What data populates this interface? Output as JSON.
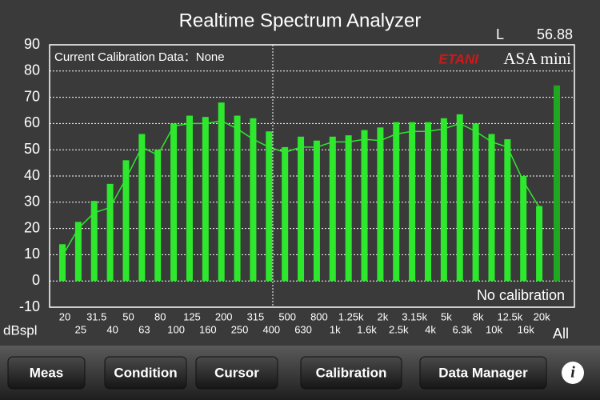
{
  "header": {
    "title": "Realtime Spectrum Analyzer",
    "channel": "L",
    "level": 56.88
  },
  "chart_data": {
    "type": "bar",
    "y_label": "dBspl",
    "categories": [
      "20",
      "25",
      "31.5",
      "40",
      "50",
      "63",
      "80",
      "100",
      "125",
      "160",
      "200",
      "250",
      "315",
      "400",
      "500",
      "630",
      "800",
      "1k",
      "1.25k",
      "1.6k",
      "2k",
      "2.5k",
      "3.15k",
      "4k",
      "5k",
      "6.3k",
      "8k",
      "10k",
      "12.5k",
      "16k",
      "20k",
      "All"
    ],
    "series": [
      {
        "type": "bar",
        "color": "#2ee82e",
        "total_color": "#1fa81f",
        "values": [
          14,
          22.5,
          30.5,
          37,
          46,
          56,
          50,
          60,
          63,
          62.5,
          68,
          63,
          62,
          57,
          51,
          55,
          53.5,
          55,
          55.5,
          57.5,
          58.5,
          60.5,
          60.5,
          60.5,
          62,
          63.5,
          60,
          56,
          54,
          40,
          28.5,
          74.5
        ]
      },
      {
        "type": "line",
        "color": "#2ee82e",
        "values": [
          9.5,
          20,
          26,
          28,
          39,
          51,
          48,
          59,
          60,
          60,
          61,
          58,
          54,
          51,
          49,
          51,
          51,
          53,
          53,
          54,
          53.5,
          56,
          57,
          57,
          58,
          60,
          57,
          53,
          51,
          38,
          28,
          null
        ]
      }
    ],
    "ylim": [
      -10,
      90
    ],
    "yticks": [
      -10,
      0,
      10,
      20,
      30,
      40,
      50,
      60,
      70,
      80,
      90
    ],
    "grid": true,
    "annotations": {
      "calibration": "Current Calibration Data：None",
      "brand": "ETANI",
      "model": "ASA mini",
      "status": "No calibration"
    }
  },
  "toolbar": {
    "buttons": [
      "Meas",
      "Condition",
      "Cursor",
      "Calibration",
      "Data Manager"
    ],
    "info": "i"
  }
}
